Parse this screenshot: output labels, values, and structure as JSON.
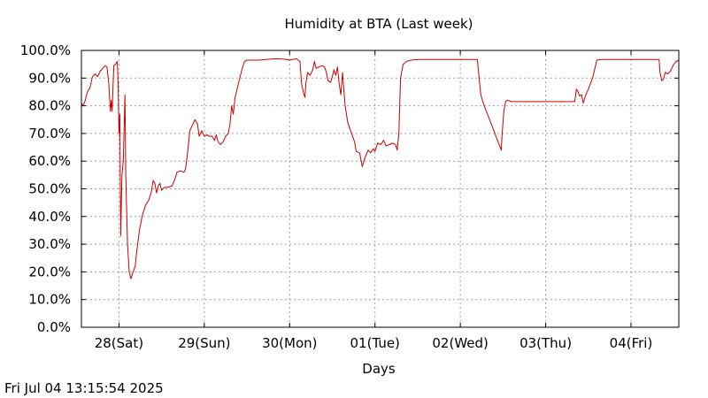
{
  "chart_data": {
    "type": "line",
    "title": "Humidity at BTA (Last week)",
    "xlabel": "Days",
    "ylabel": "",
    "footer": "Fri Jul 04 13:15:54 2025",
    "grid": true,
    "x_unit": "day index (0 = Sat 28 00:00)",
    "xlim": [
      -0.44,
      6.56
    ],
    "ylim": [
      0,
      100
    ],
    "y_ticks": [
      0,
      10,
      20,
      30,
      40,
      50,
      60,
      70,
      80,
      90,
      100
    ],
    "y_tick_labels": [
      "0.0%",
      "10.0%",
      "20.0%",
      "30.0%",
      "40.0%",
      "50.0%",
      "60.0%",
      "70.0%",
      "80.0%",
      "90.0%",
      "100.0%"
    ],
    "x_ticks": [
      0,
      1,
      2,
      3,
      4,
      5,
      6
    ],
    "x_tick_labels": [
      "28(Sat)",
      "29(Sun)",
      "30(Mon)",
      "01(Tue)",
      "02(Wed)",
      "03(Thu)",
      "04(Fri)"
    ],
    "series": [
      {
        "color": "#cc0000",
        "points": [
          [
            -0.44,
            81.0
          ],
          [
            -0.42,
            80.0
          ],
          [
            -0.4,
            81.5
          ],
          [
            -0.37,
            85.0
          ],
          [
            -0.34,
            86.5
          ],
          [
            -0.31,
            90.5
          ],
          [
            -0.28,
            91.5
          ],
          [
            -0.25,
            90.5
          ],
          [
            -0.22,
            92.5
          ],
          [
            -0.19,
            93.5
          ],
          [
            -0.16,
            94.5
          ],
          [
            -0.14,
            94.0
          ],
          [
            -0.12,
            88.0
          ],
          [
            -0.1,
            78.0
          ],
          [
            -0.09,
            82.0
          ],
          [
            -0.08,
            78.0
          ],
          [
            -0.06,
            94.5
          ],
          [
            -0.04,
            95.0
          ],
          [
            -0.02,
            96.0
          ],
          [
            -0.01,
            88.0
          ],
          [
            0.0,
            70.0
          ],
          [
            0.01,
            77.0
          ],
          [
            0.02,
            33.0
          ],
          [
            0.035,
            55.0
          ],
          [
            0.05,
            60.0
          ],
          [
            0.07,
            84.0
          ],
          [
            0.08,
            55.0
          ],
          [
            0.1,
            30.0
          ],
          [
            0.12,
            20.0
          ],
          [
            0.14,
            17.5
          ],
          [
            0.16,
            19.5
          ],
          [
            0.19,
            22.0
          ],
          [
            0.21,
            28.0
          ],
          [
            0.24,
            35.0
          ],
          [
            0.27,
            40.0
          ],
          [
            0.31,
            44.0
          ],
          [
            0.35,
            46.0
          ],
          [
            0.38,
            49.0
          ],
          [
            0.4,
            53.0
          ],
          [
            0.42,
            52.0
          ],
          [
            0.44,
            48.5
          ],
          [
            0.46,
            51.0
          ],
          [
            0.48,
            52.0
          ],
          [
            0.5,
            49.5
          ],
          [
            0.53,
            50.5
          ],
          [
            0.57,
            50.5
          ],
          [
            0.62,
            51.0
          ],
          [
            0.65,
            53.0
          ],
          [
            0.68,
            56.0
          ],
          [
            0.72,
            56.5
          ],
          [
            0.76,
            56.0
          ],
          [
            0.78,
            57.0
          ],
          [
            0.8,
            62.0
          ],
          [
            0.83,
            71.0
          ],
          [
            0.86,
            73.0
          ],
          [
            0.89,
            75.0
          ],
          [
            0.92,
            73.5
          ],
          [
            0.94,
            69.0
          ],
          [
            0.97,
            71.0
          ],
          [
            1.0,
            69.0
          ],
          [
            1.03,
            69.5
          ],
          [
            1.06,
            69.0
          ],
          [
            1.09,
            69.0
          ],
          [
            1.12,
            67.5
          ],
          [
            1.14,
            69.5
          ],
          [
            1.16,
            67.0
          ],
          [
            1.19,
            66.0
          ],
          [
            1.22,
            67.0
          ],
          [
            1.25,
            69.0
          ],
          [
            1.28,
            70.0
          ],
          [
            1.3,
            73.0
          ],
          [
            1.32,
            80.0
          ],
          [
            1.34,
            77.0
          ],
          [
            1.36,
            83.0
          ],
          [
            1.4,
            88.0
          ],
          [
            1.44,
            93.0
          ],
          [
            1.47,
            96.0
          ],
          [
            1.5,
            96.5
          ],
          [
            1.55,
            96.5
          ],
          [
            1.65,
            96.5
          ],
          [
            1.75,
            96.8
          ],
          [
            1.85,
            97.0
          ],
          [
            1.95,
            96.8
          ],
          [
            2.0,
            96.5
          ],
          [
            2.08,
            97.0
          ],
          [
            2.12,
            96.0
          ],
          [
            2.14,
            88.0
          ],
          [
            2.16,
            85.0
          ],
          [
            2.18,
            83.0
          ],
          [
            2.19,
            88.0
          ],
          [
            2.21,
            92.0
          ],
          [
            2.24,
            91.0
          ],
          [
            2.27,
            93.0
          ],
          [
            2.29,
            96.0
          ],
          [
            2.31,
            93.5
          ],
          [
            2.34,
            94.0
          ],
          [
            2.38,
            94.5
          ],
          [
            2.41,
            94.0
          ],
          [
            2.43,
            92.0
          ],
          [
            2.45,
            89.0
          ],
          [
            2.48,
            88.5
          ],
          [
            2.5,
            90.5
          ],
          [
            2.52,
            93.0
          ],
          [
            2.54,
            91.0
          ],
          [
            2.56,
            94.0
          ],
          [
            2.58,
            88.0
          ],
          [
            2.6,
            84.0
          ],
          [
            2.62,
            92.0
          ],
          [
            2.63,
            88.0
          ],
          [
            2.65,
            80.0
          ],
          [
            2.68,
            74.0
          ],
          [
            2.72,
            70.5
          ],
          [
            2.76,
            67.0
          ],
          [
            2.78,
            63.5
          ],
          [
            2.82,
            63.0
          ],
          [
            2.85,
            58.0
          ],
          [
            2.88,
            61.0
          ],
          [
            2.92,
            64.0
          ],
          [
            2.95,
            63.0
          ],
          [
            2.98,
            64.5
          ],
          [
            3.0,
            63.5
          ],
          [
            3.03,
            66.5
          ],
          [
            3.07,
            66.0
          ],
          [
            3.1,
            67.5
          ],
          [
            3.13,
            65.5
          ],
          [
            3.17,
            66.0
          ],
          [
            3.21,
            66.5
          ],
          [
            3.24,
            66.0
          ],
          [
            3.26,
            64.0
          ],
          [
            3.28,
            70.0
          ],
          [
            3.3,
            90.0
          ],
          [
            3.33,
            95.0
          ],
          [
            3.37,
            96.0
          ],
          [
            3.42,
            96.5
          ],
          [
            3.5,
            96.7
          ],
          [
            3.7,
            96.7
          ],
          [
            3.9,
            96.7
          ],
          [
            4.1,
            96.7
          ],
          [
            4.2,
            96.7
          ],
          [
            4.22,
            90.0
          ],
          [
            4.24,
            84.0
          ],
          [
            4.28,
            80.0
          ],
          [
            4.33,
            76.0
          ],
          [
            4.38,
            72.0
          ],
          [
            4.43,
            68.0
          ],
          [
            4.48,
            64.0
          ],
          [
            4.49,
            70.0
          ],
          [
            4.51,
            78.0
          ],
          [
            4.53,
            81.5
          ],
          [
            4.55,
            82.0
          ],
          [
            4.6,
            81.5
          ],
          [
            4.8,
            81.5
          ],
          [
            5.0,
            81.5
          ],
          [
            5.2,
            81.5
          ],
          [
            5.34,
            81.5
          ],
          [
            5.36,
            86.0
          ],
          [
            5.38,
            85.0
          ],
          [
            5.4,
            83.5
          ],
          [
            5.42,
            84.0
          ],
          [
            5.44,
            81.0
          ],
          [
            5.47,
            84.0
          ],
          [
            5.5,
            86.0
          ],
          [
            5.55,
            90.0
          ],
          [
            5.6,
            96.5
          ],
          [
            5.65,
            96.7
          ],
          [
            5.8,
            96.7
          ],
          [
            6.0,
            96.7
          ],
          [
            6.2,
            96.7
          ],
          [
            6.33,
            96.7
          ],
          [
            6.34,
            92.0
          ],
          [
            6.36,
            89.0
          ],
          [
            6.38,
            89.5
          ],
          [
            6.4,
            92.0
          ],
          [
            6.43,
            91.5
          ],
          [
            6.46,
            92.5
          ],
          [
            6.5,
            95.0
          ],
          [
            6.53,
            96.0
          ],
          [
            6.56,
            96.5
          ]
        ]
      }
    ]
  }
}
